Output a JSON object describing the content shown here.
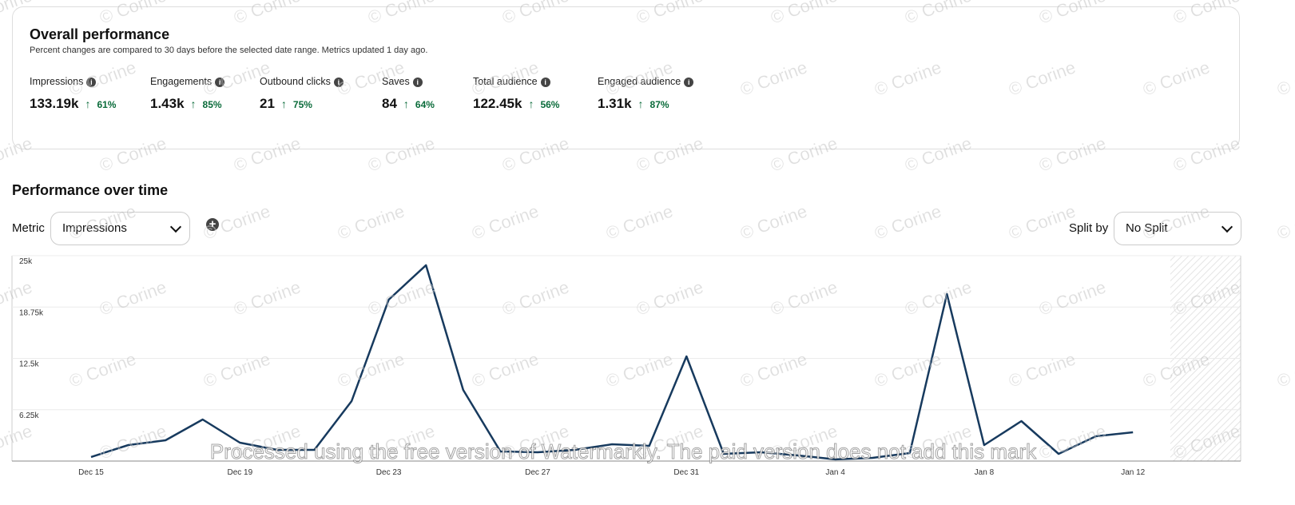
{
  "header": {
    "title": "Overall performance",
    "subtitle": "Percent changes are compared to 30 days before the selected date range. Metrics updated 1 day ago."
  },
  "metrics": [
    {
      "label": "Impressions",
      "value": "133.19k",
      "change": "61%"
    },
    {
      "label": "Engagements",
      "value": "1.43k",
      "change": "85%"
    },
    {
      "label": "Outbound clicks",
      "value": "21",
      "change": "75%"
    },
    {
      "label": "Saves",
      "value": "84",
      "change": "64%"
    },
    {
      "label": "Total audience",
      "value": "122.45k",
      "change": "56%"
    },
    {
      "label": "Engaged audience",
      "value": "1.31k",
      "change": "87%"
    }
  ],
  "section": {
    "title": "Performance over time",
    "metric_label": "Metric",
    "metric_value": "Impressions",
    "split_label": "Split by",
    "split_value": "No Split"
  },
  "chart_data": {
    "type": "line",
    "color": "#173a5e",
    "categories": [
      "Dec 15",
      null,
      null,
      null,
      "Dec 19",
      null,
      null,
      null,
      "Dec 23",
      null,
      null,
      null,
      "Dec 27",
      null,
      null,
      null,
      "Dec 31",
      null,
      null,
      null,
      "Jan 4",
      null,
      null,
      null,
      "Jan 8",
      null,
      null,
      null,
      "Jan 12"
    ],
    "values": [
      500,
      1950,
      2530,
      5060,
      2240,
      1360,
      1360,
      7300,
      19650,
      23840,
      8660,
      1170,
      1070,
      1360,
      2040,
      1850,
      12740,
      880,
      1070,
      680,
      200,
      390,
      970,
      20330,
      1950,
      4860,
      880,
      3020,
      3500
    ],
    "ylim": [
      0,
      25000
    ],
    "yticks": [
      {
        "value": 6250,
        "label": "6.25k"
      },
      {
        "value": 12500,
        "label": "12.5k"
      },
      {
        "value": 18750,
        "label": "18.75k"
      },
      {
        "value": 25000,
        "label": "25k"
      }
    ],
    "grid": true
  },
  "watermark": "© Corine",
  "banner": "Processed using the free version of Watermarkly. The paid version does not add this mark"
}
